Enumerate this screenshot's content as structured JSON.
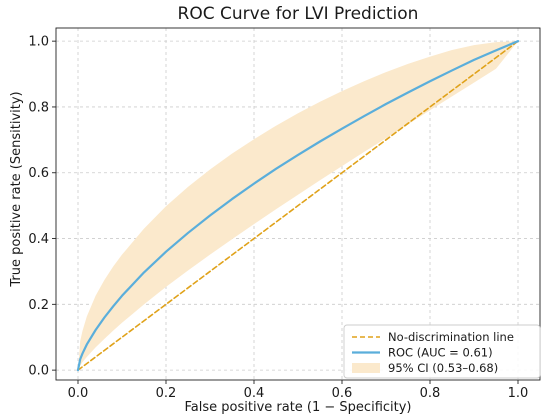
{
  "chart_data": {
    "type": "line",
    "title": "ROC Curve for LVI Prediction",
    "xlabel": "False positive rate (1 − Specificity)",
    "ylabel": "True positive rate (Sensitivity)",
    "xlim": [
      -0.05,
      1.05
    ],
    "ylim": [
      -0.03,
      1.04
    ],
    "xticks": [
      0.0,
      0.2,
      0.4,
      0.6,
      0.8,
      1.0
    ],
    "xtick_labels": [
      "0.0",
      "0.2",
      "0.4",
      "0.6",
      "0.8",
      "1.0"
    ],
    "yticks": [
      0.0,
      0.2,
      0.4,
      0.6,
      0.8,
      1.0
    ],
    "ytick_labels": [
      "0.0",
      "0.2",
      "0.4",
      "0.6",
      "0.8",
      "1.0"
    ],
    "grid": true,
    "legend": {
      "placement": "lower-right",
      "entries": [
        {
          "label": "No-discrimination line",
          "kind": "dashed-line",
          "color": "#e0a21a"
        },
        {
          "label": "ROC (AUC = 0.61)",
          "kind": "line",
          "color": "#5aaedb"
        },
        {
          "label": "95% CI (0.53–0.68)",
          "kind": "band",
          "color": "#fbe9cc"
        }
      ]
    },
    "series": [
      {
        "name": "No-discrimination line",
        "style": "dashed",
        "color": "#e0a21a",
        "x": [
          0.0,
          1.0
        ],
        "y": [
          0.0,
          1.0
        ]
      },
      {
        "name": "ROC (AUC = 0.61)",
        "style": "solid",
        "color": "#5aaedb",
        "x": [
          0.0,
          0.005,
          0.01,
          0.02,
          0.04,
          0.06,
          0.08,
          0.1,
          0.15,
          0.2,
          0.25,
          0.3,
          0.35,
          0.4,
          0.45,
          0.5,
          0.55,
          0.6,
          0.65,
          0.7,
          0.75,
          0.8,
          0.85,
          0.9,
          0.95,
          1.0
        ],
        "y": [
          0.0,
          0.033,
          0.05,
          0.078,
          0.122,
          0.16,
          0.194,
          0.226,
          0.297,
          0.36,
          0.417,
          0.47,
          0.52,
          0.567,
          0.612,
          0.654,
          0.695,
          0.734,
          0.772,
          0.809,
          0.844,
          0.878,
          0.911,
          0.943,
          0.972,
          1.0
        ]
      },
      {
        "name": "95% CI (0.53–0.68)",
        "style": "band",
        "color": "#fbe9cc",
        "x": [
          0.0,
          0.005,
          0.01,
          0.02,
          0.04,
          0.06,
          0.08,
          0.1,
          0.15,
          0.2,
          0.25,
          0.3,
          0.35,
          0.4,
          0.45,
          0.5,
          0.55,
          0.6,
          0.65,
          0.7,
          0.75,
          0.8,
          0.85,
          0.9,
          0.95,
          1.0
        ],
        "lower": [
          0.0,
          0.014,
          0.024,
          0.04,
          0.069,
          0.095,
          0.12,
          0.144,
          0.2,
          0.253,
          0.303,
          0.351,
          0.398,
          0.444,
          0.489,
          0.533,
          0.577,
          0.62,
          0.663,
          0.705,
          0.747,
          0.79,
          0.832,
          0.874,
          0.916,
          1.0
        ],
        "upper": [
          0.0,
          0.088,
          0.118,
          0.163,
          0.226,
          0.274,
          0.315,
          0.351,
          0.43,
          0.498,
          0.557,
          0.61,
          0.658,
          0.702,
          0.743,
          0.781,
          0.816,
          0.848,
          0.878,
          0.906,
          0.931,
          0.953,
          0.973,
          0.988,
          0.997,
          1.0
        ]
      }
    ]
  }
}
